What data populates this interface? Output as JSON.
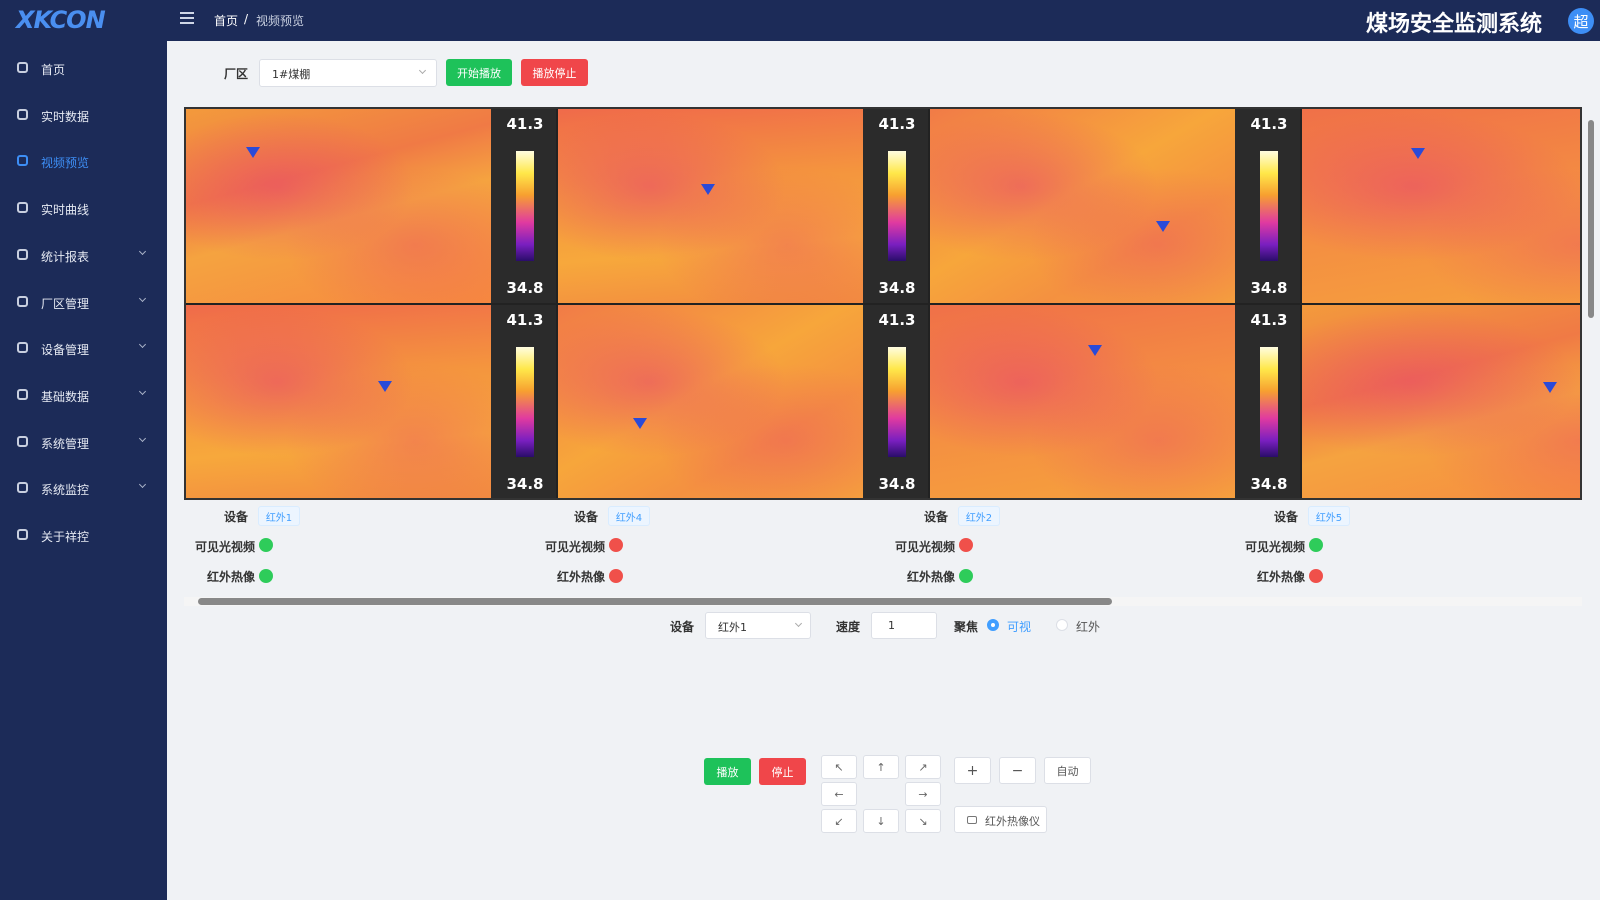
{
  "header": {
    "logo": "XKCON",
    "title": "煤场安全监测系统",
    "avatar": "超"
  },
  "breadcrumb": [
    "首页",
    "视频预览"
  ],
  "sidebar": {
    "active": 2,
    "items": [
      {
        "label": "首页",
        "has_children": false
      },
      {
        "label": "实时数据",
        "has_children": false
      },
      {
        "label": "视频预览",
        "has_children": false
      },
      {
        "label": "实时曲线",
        "has_children": false
      },
      {
        "label": "统计报表",
        "has_children": true
      },
      {
        "label": "厂区管理",
        "has_children": true
      },
      {
        "label": "设备管理",
        "has_children": true
      },
      {
        "label": "基础数据",
        "has_children": true
      },
      {
        "label": "系统管理",
        "has_children": true
      },
      {
        "label": "系统监控",
        "has_children": true
      },
      {
        "label": "关于祥控",
        "has_children": false
      }
    ]
  },
  "toolbar": {
    "area_label": "厂区",
    "area_value": "1#煤棚",
    "start": "开始播放",
    "stop": "播放停止"
  },
  "videos": {
    "tiles": [
      {
        "scale": [
          41.3,
          34.8
        ]
      },
      {
        "scale": [
          41.3,
          34.8
        ]
      },
      {
        "scale": [
          41.3,
          34.8
        ]
      },
      {
        "scale": null
      },
      {
        "scale": [
          41.3,
          34.8
        ]
      },
      {
        "scale": [
          41.3,
          34.8
        ]
      },
      {
        "scale": [
          41.3,
          34.8
        ]
      },
      {
        "scale": null
      }
    ]
  },
  "devices": [
    {
      "label": "设备",
      "name": "红外1",
      "visible_label": "可见光视频",
      "visible_color": "#2ecc5a",
      "ir_label": "红外热像",
      "ir_color": "#2ecc5a"
    },
    {
      "label": "设备",
      "name": "红外4",
      "visible_label": "可见光视频",
      "visible_color": "#f0504a",
      "ir_label": "红外热像",
      "ir_color": "#f0504a"
    },
    {
      "label": "设备",
      "name": "红外2",
      "visible_label": "可见光视频",
      "visible_color": "#f0504a",
      "ir_label": "红外热像",
      "ir_color": "#2ecc5a"
    },
    {
      "label": "设备",
      "name": "红外5",
      "visible_label": "可见光视频",
      "visible_color": "#2ecc5a",
      "ir_label": "红外热像",
      "ir_color": "#f0504a"
    }
  ],
  "controls": {
    "device_label": "设备",
    "device": "红外1",
    "speed_label": "速度",
    "speed": 1,
    "focus_label": "聚焦",
    "focus_options": [
      "可视",
      "红外"
    ],
    "focus_selected": 0,
    "play": "播放",
    "stop": "停止",
    "ptz": [
      "↖",
      "↑",
      "↗",
      "←",
      "→",
      "↙",
      "↓",
      "↘"
    ],
    "zoom_in": "+",
    "zoom_out": "−",
    "auto": "自动",
    "ir_camera": "红外热像仪"
  }
}
